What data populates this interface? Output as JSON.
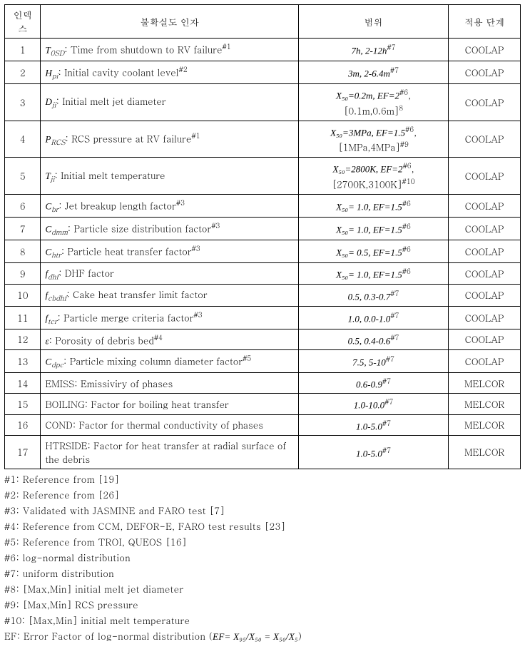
{
  "header": {
    "col_idx": "인덱스",
    "col_factor": "불확실도 인자",
    "col_range": "범위",
    "col_stage": "적용 단계"
  },
  "rows": [
    {
      "idx": "1",
      "sym": "T",
      "sub": "0SD",
      "desc": ": Time from shutdown to RV failure",
      "note": "#1",
      "range": "7h, 2-12h",
      "range_note": "#7",
      "stage": "COOLAP"
    },
    {
      "idx": "2",
      "sym": "H",
      "sub": "pi",
      "desc": ": Initial cavity coolant level",
      "note": "#2",
      "range": "3m, 2-6.4m",
      "range_note": "#7",
      "stage": "COOLAP"
    },
    {
      "idx": "3",
      "sym": "D",
      "sub": "ji",
      "desc": ": Initial melt jet diameter",
      "note": "",
      "range_l1": "X₅₀=0.2m, EF=2",
      "range_l1_note": "#6",
      "range_l2": "[0.1m,0.6m]",
      "range_l2_note": "8",
      "stage": "COOLAP",
      "multi": true,
      "comma": ","
    },
    {
      "idx": "4",
      "sym": "P",
      "sub": "RCS",
      "desc": ": RCS pressure at RV failure",
      "note": "#1",
      "range_l1": "X₅₀=3MPa, EF=1.5",
      "range_l1_note": "#6",
      "range_l2": "[1MPa,4MPa]",
      "range_l2_note": "#9",
      "stage": "COOLAP",
      "multi": true,
      "comma": ","
    },
    {
      "idx": "5",
      "sym": "T",
      "sub": "ji",
      "desc": ": Initial melt temperature",
      "note": "",
      "range_l1": "X₅₀=2800K, EF=2",
      "range_l1_note": "#6",
      "range_l2": "[2700K,3100K]",
      "range_l2_note": "#10",
      "stage": "COOLAP",
      "multi": true,
      "comma": ","
    },
    {
      "idx": "6",
      "sym": "C",
      "sub": "br",
      "desc": ": Jet breakup length factor",
      "note": "#3",
      "range": "X₅₀= 1.0, EF=1.5",
      "range_note": "#6",
      "stage": "COOLAP"
    },
    {
      "idx": "7",
      "sym": "C",
      "sub": "dmm",
      "desc": ": Particle size distribution factor",
      "note": "#3",
      "range": "X₅₀= 1.0, EF=1.5",
      "range_note": "#6",
      "stage": "COOLAP"
    },
    {
      "idx": "8",
      "sym": "C",
      "sub": "htr",
      "desc": ": Particle heat transfer factor",
      "note": "#3",
      "range": "X₅₀= 0.5, EF=1.5",
      "range_note": "#6",
      "stage": "COOLAP"
    },
    {
      "idx": "9",
      "sym": "f",
      "sub": "dhf",
      "desc": ": DHF factor",
      "note": "",
      "range": "X₅₀= 1.0, EF=1.5",
      "range_note": "#6",
      "stage": "COOLAP"
    },
    {
      "idx": "10",
      "sym": "f",
      "sub": "cbdhf",
      "desc": ": Cake heat transfer limit factor",
      "note": "",
      "range": "0.5, 0.3-0.7",
      "range_note": "#7",
      "stage": "COOLAP"
    },
    {
      "idx": "11",
      "sym": "f",
      "sub": "tcr",
      "desc": ": Particle merge criteria factor",
      "note": "#3",
      "range": "1.0, 0.0-1.0",
      "range_note": "#7",
      "stage": "COOLAP"
    },
    {
      "idx": "12",
      "sym": "ε",
      "sub": "",
      "desc": ": Porosity of debris bed",
      "note": "#4",
      "range": "0.5, 0.4-0.6",
      "range_note": "#7",
      "stage": "COOLAP"
    },
    {
      "idx": "13",
      "sym": "C",
      "sub": "dpc",
      "desc": ": Particle mixing column diameter factor",
      "note": "#5",
      "range": "7.5, 5-10",
      "range_note": "#7",
      "stage": "COOLAP"
    },
    {
      "idx": "14",
      "sym": "",
      "sub": "",
      "desc": "EMISS: Emissiviry of phases",
      "note": "",
      "range": "0.6-0.9",
      "range_note": "#7",
      "stage": "MELCOR"
    },
    {
      "idx": "15",
      "sym": "",
      "sub": "",
      "desc": "BOILING: Factor for boiling heat transfer",
      "note": "",
      "range": "1.0-10.0",
      "range_note": "#7",
      "stage": "MELCOR"
    },
    {
      "idx": "16",
      "sym": "",
      "sub": "",
      "desc": "COND: Factor for thermal conductivity of phases",
      "note": "",
      "range": "1.0-5.0",
      "range_note": "#7",
      "stage": "MELCOR"
    },
    {
      "idx": "17",
      "sym": "",
      "sub": "",
      "desc": "HTRSIDE: Factor for heat transfer at radial surface of the debris",
      "note": "",
      "range": "1.0-5.0",
      "range_note": "#7",
      "stage": "MELCOR"
    }
  ],
  "footnotes": [
    "#1: Reference from [19]",
    "#2: Reference from [26]",
    "#3: Validated with JASMINE and FARO test [7]",
    "#4: Reference from CCM, DEFOR-E, FARO test results [23]",
    "#5: Reference from TROI, QUEOS [16]",
    "#6: log-normal distribution",
    "#7: uniform distribution",
    "#8: [Max,Min] initial melt jet diameter",
    "#9: [Max,Min] RCS pressure",
    "#10: [Max,Min] initial melt temperature"
  ],
  "ef_note": {
    "prefix": "EF: Error Factor of log-normal distribution (",
    "eq": "EF= X₉₅/X₅₀ = X₅₀/X₅",
    "suffix": ")"
  }
}
